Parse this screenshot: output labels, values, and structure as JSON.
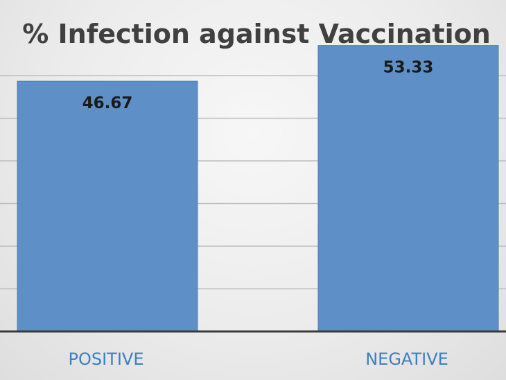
{
  "chart_data": {
    "type": "bar",
    "title": "% Infection against Vaccination",
    "categories": [
      "POSITIVE",
      "NEGATIVE"
    ],
    "values": [
      46.67,
      53.33
    ],
    "data_labels": [
      "46.67",
      "53.33"
    ],
    "xlabel": "",
    "ylabel": "",
    "ylim": [
      0,
      56
    ],
    "grid": true,
    "legend": "none",
    "bar_color": "#5e8fc6",
    "label_color": "#3d7fc1",
    "title_color": "#404040"
  }
}
